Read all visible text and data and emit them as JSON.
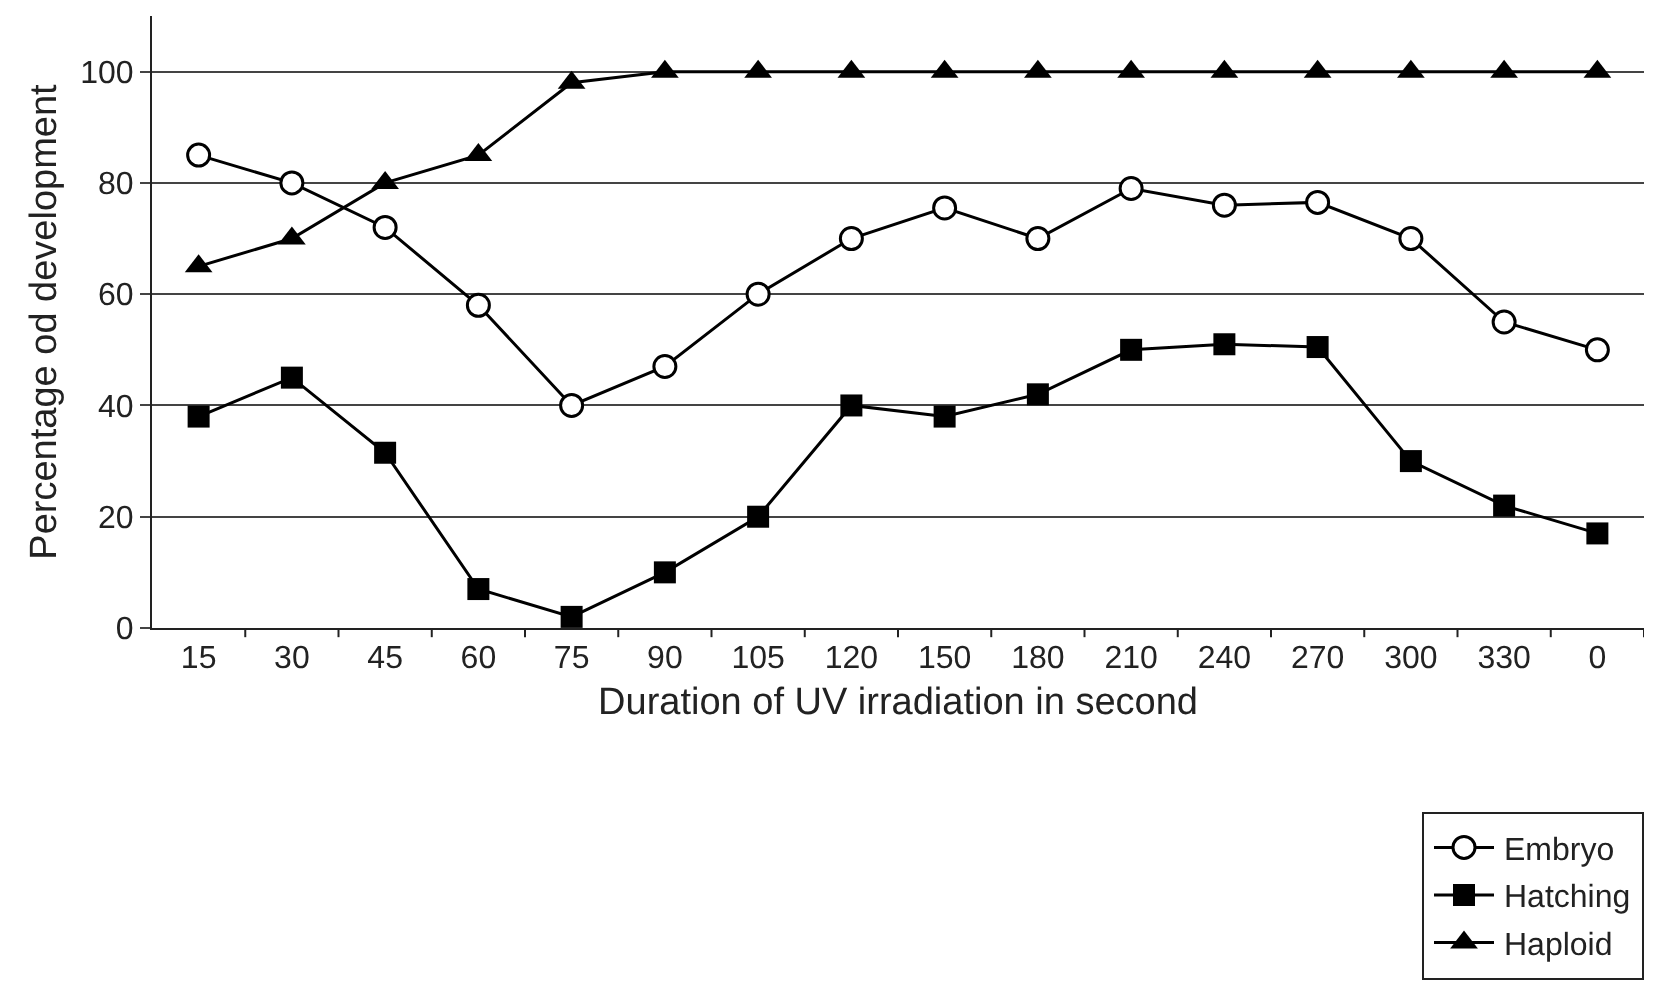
{
  "chart_data": {
    "type": "line",
    "xlabel": "Duration of UV irradiation in second",
    "ylabel": "Percentage od development",
    "categories": [
      "15",
      "30",
      "45",
      "60",
      "75",
      "90",
      "105",
      "120",
      "150",
      "180",
      "210",
      "240",
      "270",
      "300",
      "330",
      "0"
    ],
    "series": [
      {
        "name": "Embryo",
        "color": "#000000",
        "marker": "circle",
        "values": [
          85,
          80,
          72,
          58,
          40,
          47,
          60,
          70,
          75.5,
          70,
          79,
          76,
          76.5,
          70,
          55,
          50
        ]
      },
      {
        "name": "Hatching",
        "color": "#000000",
        "marker": "square",
        "values": [
          38,
          45,
          31.5,
          7,
          2,
          10,
          20,
          40,
          38,
          42,
          50,
          51,
          50.5,
          30,
          22,
          17
        ]
      },
      {
        "name": "Haploid",
        "color": "#000000",
        "marker": "triangle",
        "values": [
          65,
          70,
          80,
          85,
          98,
          100,
          100,
          100,
          100,
          100,
          100,
          100,
          100,
          100,
          100,
          100
        ]
      }
    ],
    "ylim": [
      0,
      110
    ],
    "yticks": [
      0,
      20,
      40,
      60,
      80,
      100
    ],
    "grid": "y",
    "legend": "bottom right",
    "line_style": "solid"
  }
}
